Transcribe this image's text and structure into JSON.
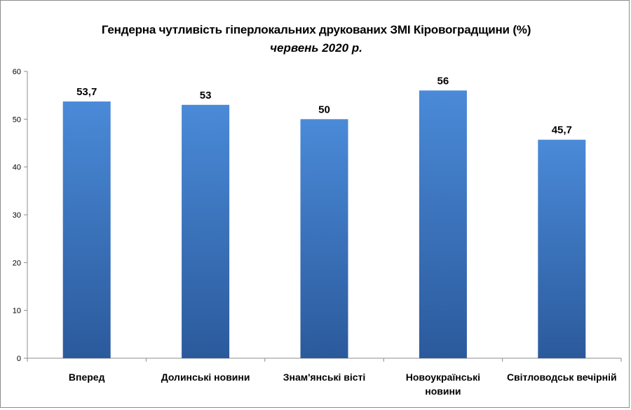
{
  "chart_data": {
    "type": "bar",
    "title": "Гендерна чутливість гіперлокальних друкованих ЗМІ Кіровоградщини (%)",
    "subtitle": "червень 2020 р.",
    "categories": [
      "Вперед",
      "Долинські новини",
      "Знам'янські вісті",
      "Новоукраїнські новини",
      "Світловодськ вечірній"
    ],
    "category_lines": [
      [
        "Вперед"
      ],
      [
        "Долинські новини"
      ],
      [
        "Знам'янські вісті"
      ],
      [
        "Новоукраїнські",
        "новини"
      ],
      [
        "Світловодськ вечірній"
      ]
    ],
    "values": [
      53.7,
      53,
      50,
      56,
      45.7
    ],
    "value_labels": [
      "53,7",
      "53",
      "50",
      "56",
      "45,7"
    ],
    "ylim": [
      0,
      60
    ],
    "yticks": [
      0,
      10,
      20,
      30,
      40,
      50,
      60
    ],
    "grid": false,
    "legend": "none",
    "bar_color_top": "#4a8ad8",
    "bar_color_bottom": "#2b5a9c"
  }
}
